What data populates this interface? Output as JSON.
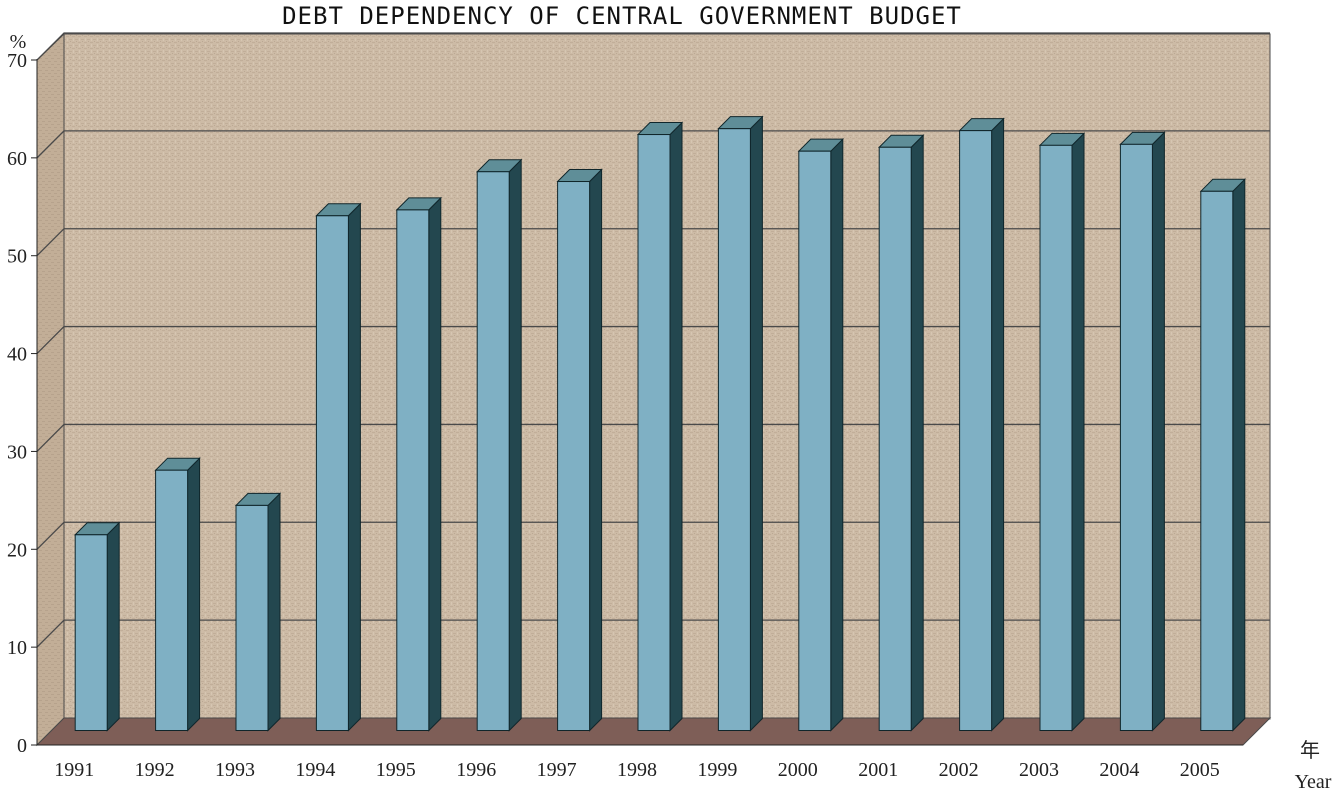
{
  "chart_data": {
    "type": "bar",
    "title": "DEBT DEPENDENCY OF CENTRAL GOVERNMENT BUDGET",
    "ylabel": "%",
    "xlabel_cn": "年",
    "xlabel": "Year",
    "ylim": [
      0,
      70
    ],
    "yticks": [
      0,
      10,
      20,
      30,
      40,
      50,
      60,
      70
    ],
    "grid": true,
    "categories": [
      "1991",
      "1992",
      "1993",
      "1994",
      "1995",
      "1996",
      "1997",
      "1998",
      "1999",
      "2000",
      "2001",
      "2002",
      "2003",
      "2004",
      "2005"
    ],
    "series": [
      {
        "values": [
          20.0,
          26.6,
          23.0,
          52.6,
          53.2,
          57.1,
          56.1,
          60.9,
          61.5,
          59.2,
          59.6,
          61.3,
          59.8,
          59.9,
          55.1
        ]
      }
    ],
    "colors": {
      "bar_front": "#7fb0c4",
      "bar_side": "#23474f",
      "bar_top": "#5f8e98",
      "wall": "#cdbba6",
      "side_wall": "#c2ae97",
      "floor": "#7e5e57",
      "grid": "#4a4a4a"
    }
  }
}
